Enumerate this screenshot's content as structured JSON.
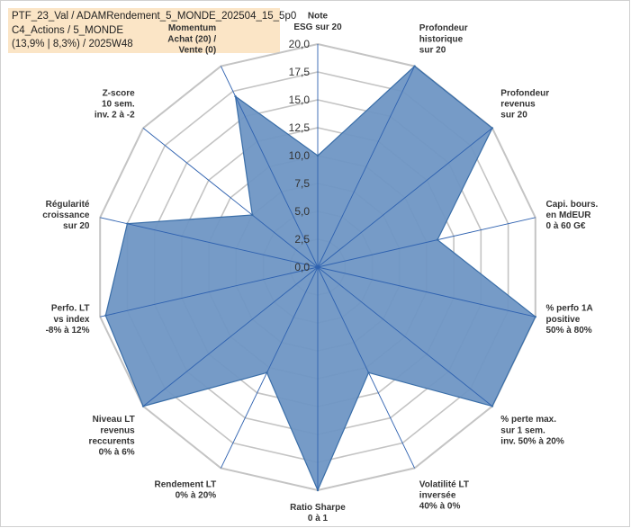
{
  "title_lines": [
    "PTF_23_Val / ADAMRendement_5_MONDE_202504_15_5p0",
    "C4_Actions / 5_MONDE",
    "(13,9% | 8,3%) / 2025W48"
  ],
  "chart_data": {
    "type": "radar",
    "rmin": 0,
    "rmax": 20,
    "ticks": [
      "0,0",
      "2,5",
      "5,0",
      "7,5",
      "10,0",
      "12,5",
      "15,0",
      "17,5",
      "20,0"
    ],
    "grid": true,
    "fill_color": "#6f96c4",
    "stroke_color": "#3a6ea8",
    "grid_color": "#c4c4c4",
    "axes": [
      {
        "label": [
          "Note",
          "ESG sur 20"
        ],
        "value": 10.0
      },
      {
        "label": [
          "Profondeur",
          "historique",
          "sur 20"
        ],
        "value": 20.0
      },
      {
        "label": [
          "Profondeur",
          "revenus",
          "sur 20"
        ],
        "value": 20.0
      },
      {
        "label": [
          "Capi. bours.",
          "en MdEUR",
          "0 à 60 G€"
        ],
        "value": 11.0
      },
      {
        "label": [
          "% perfo 1A",
          "positive",
          "50% à 80%"
        ],
        "value": 20.0
      },
      {
        "label": [
          "% perte max.",
          "sur 1 sem.",
          "inv. 50% à 20%"
        ],
        "value": 20.0
      },
      {
        "label": [
          "Volatilité LT",
          "inversée",
          "40% à 0%"
        ],
        "value": 10.5
      },
      {
        "label": [
          "Ratio Sharpe",
          "0 à 1"
        ],
        "value": 20.0
      },
      {
        "label": [
          "Rendement LT",
          "0% à 20%"
        ],
        "value": 10.5
      },
      {
        "label": [
          "Niveau LT",
          "revenus",
          "reccurents",
          "0% à 6%"
        ],
        "value": 20.0
      },
      {
        "label": [
          "Perfo. LT",
          "vs index",
          "-8% à 12%"
        ],
        "value": 19.5
      },
      {
        "label": [
          "Régularité",
          "croissance",
          "sur 20"
        ],
        "value": 17.5
      },
      {
        "label": [
          "Z-score",
          "10 sem.",
          "inv. 2 à -2"
        ],
        "value": 7.5
      },
      {
        "label": [
          "Momentum",
          "Achat (20) /",
          "Vente (0)"
        ],
        "value": 17.0
      }
    ]
  }
}
